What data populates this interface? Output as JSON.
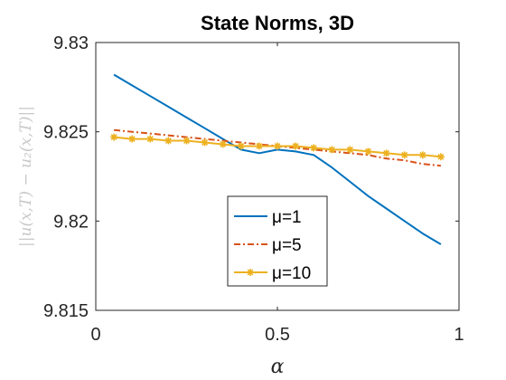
{
  "chart_data": {
    "type": "line",
    "title": "State Norms, 3D",
    "xlabel": "α",
    "ylabel": "||u(x,T) − u₂(x,T)||",
    "xlim": [
      0,
      1
    ],
    "ylim": [
      9.815,
      9.83
    ],
    "xticks": [
      0,
      0.5,
      1
    ],
    "xtick_labels": [
      "0",
      "0.5",
      "1"
    ],
    "yticks": [
      9.815,
      9.82,
      9.825,
      9.83
    ],
    "ytick_labels": [
      "9.815",
      "9.82",
      "9.825",
      "9.83"
    ],
    "grid": false,
    "legend_position": "bottom-center",
    "x": [
      0.05,
      0.1,
      0.15,
      0.2,
      0.25,
      0.3,
      0.35,
      0.4,
      0.45,
      0.5,
      0.55,
      0.6,
      0.65,
      0.7,
      0.75,
      0.8,
      0.85,
      0.9,
      0.95
    ],
    "series": [
      {
        "name": "μ=1",
        "color": "#0072BD",
        "style": "solid",
        "marker": "none",
        "values": [
          9.8282,
          9.8276,
          9.827,
          9.8264,
          9.8258,
          9.8252,
          9.8246,
          9.824,
          9.8238,
          9.824,
          9.8239,
          9.8237,
          9.823,
          9.8222,
          9.8214,
          9.8207,
          9.82,
          9.8193,
          9.8187
        ]
      },
      {
        "name": "μ=5",
        "color": "#D95319",
        "style": "dashdot",
        "marker": "none",
        "values": [
          9.8251,
          9.825,
          9.8249,
          9.8248,
          9.8247,
          9.8246,
          9.8245,
          9.8244,
          9.8243,
          9.8242,
          9.8241,
          9.824,
          9.8239,
          9.8238,
          9.8237,
          9.8235,
          9.8234,
          9.8232,
          9.8231
        ]
      },
      {
        "name": "μ=10",
        "color": "#EDB120",
        "style": "solid",
        "marker": "asterisk",
        "values": [
          9.8247,
          9.8246,
          9.8246,
          9.8245,
          9.8245,
          9.8244,
          9.8243,
          9.8242,
          9.8242,
          9.8242,
          9.8242,
          9.8241,
          9.824,
          9.824,
          9.8239,
          9.8238,
          9.8237,
          9.8237,
          9.8236
        ]
      }
    ]
  }
}
